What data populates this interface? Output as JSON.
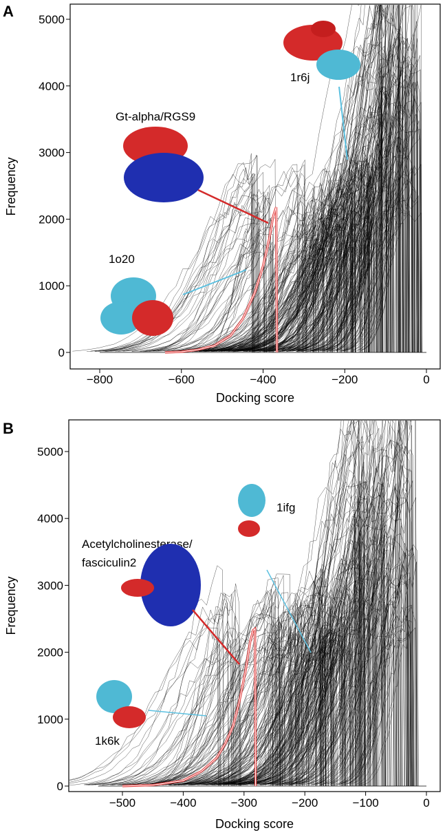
{
  "chart_data": [
    {
      "panel_label": "A",
      "type": "line",
      "xlabel": "Docking score",
      "ylabel": "Frequency",
      "xlim": [
        -850,
        20
      ],
      "ylim": [
        0,
        5200
      ],
      "xticks": [
        -800,
        -600,
        -400,
        -200,
        0
      ],
      "yticks": [
        0,
        1000,
        2000,
        3000,
        4000,
        5000
      ],
      "series": [
        {
          "color": "#000000",
          "description_values": {
            "distribution_count": "many",
            "peak_score_range": [
              -400,
              0
            ]
          }
        },
        {
          "color": "#e23a3a",
          "x": [
            -640,
            -600,
            -560,
            -520,
            -480,
            -450,
            -420,
            -400,
            -385,
            -375,
            -368,
            -366
          ],
          "y": [
            0,
            10,
            40,
            100,
            250,
            500,
            900,
            1300,
            1700,
            2050,
            2180,
            0
          ]
        }
      ],
      "annotations": [
        {
          "text": "1r6j",
          "color": "#5bc0e0"
        },
        {
          "text": "Gt-alpha/RGS9",
          "color": "#e23a3a"
        },
        {
          "text": "1o20",
          "color": "#5bc0e0"
        }
      ]
    },
    {
      "panel_label": "B",
      "type": "line",
      "xlabel": "Docking score",
      "ylabel": "Frequency",
      "xlim": [
        -590,
        15
      ],
      "ylim": [
        0,
        5200
      ],
      "xticks": [
        -500,
        -400,
        -300,
        -200,
        -100,
        0
      ],
      "yticks": [
        0,
        1000,
        2000,
        3000,
        4000,
        5000
      ],
      "series": [
        {
          "color": "#000000"
        },
        {
          "color": "#e23a3a",
          "x": [
            -500,
            -450,
            -400,
            -370,
            -345,
            -330,
            -318,
            -308,
            -298,
            -290,
            -285,
            -282,
            -281
          ],
          "y": [
            0,
            15,
            80,
            220,
            420,
            650,
            900,
            1250,
            1700,
            2150,
            2330,
            2350,
            0
          ]
        }
      ],
      "annotations": [
        {
          "text": "1ifg",
          "color": "#5bc0e0"
        },
        {
          "text": "Acetylcholinesterase/",
          "color": "#e23a3a"
        },
        {
          "text": "fasciculin2",
          "color": "#e23a3a"
        },
        {
          "text": "1k6k",
          "color": "#5bc0e0"
        }
      ]
    }
  ]
}
